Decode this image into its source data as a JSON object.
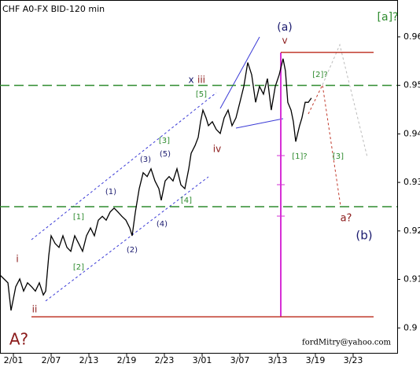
{
  "chart_data": {
    "type": "line",
    "title": "CHF A0-FX BID-120 min",
    "x": [
      -1.42,
      -1,
      -0.58,
      -0.25,
      0,
      0.25,
      0.67,
      1.08,
      1.5,
      1.92,
      2.33,
      2.75,
      3.17,
      3.42,
      3.75,
      4,
      4.42,
      4.83,
      5.25,
      5.67,
      6.08,
      6.5,
      6.92,
      7.33,
      7.75,
      8.17,
      8.58,
      9,
      9.42,
      9.83,
      10.25,
      10.67,
      11.08,
      11.5,
      11.92,
      12.33,
      12.58,
      12.92,
      13.33,
      13.75,
      14.17,
      14.58,
      15,
      15.42,
      15.67,
      16.08,
      16.5,
      16.92,
      17.33,
      17.75,
      18.17,
      18.58,
      18.83,
      19.25,
      19.58,
      19.83,
      20.08,
      20.42,
      20.67,
      21.08,
      21.5,
      21.92,
      22.33,
      22.75,
      23.17,
      23.58,
      24,
      24.42,
      24.83,
      25.25,
      25.67,
      26.08,
      26.5,
      26.92,
      27.33,
      27.75,
      28.17,
      28.58,
      28.83,
      29.08,
      29.42,
      29.67,
      29.92,
      30.33,
      30.58,
      30.92,
      31.25,
      31.58
    ],
    "series": [
      {
        "color": "#000000",
        "values": [
          0.9109,
          0.9101,
          0.9093,
          0.9036,
          0.906,
          0.9085,
          0.9101,
          0.9076,
          0.9093,
          0.9085,
          0.9076,
          0.9093,
          0.9068,
          0.9076,
          0.9149,
          0.919,
          0.9174,
          0.9166,
          0.919,
          0.9166,
          0.9158,
          0.919,
          0.9174,
          0.9158,
          0.919,
          0.9206,
          0.919,
          0.9222,
          0.923,
          0.9222,
          0.9239,
          0.9247,
          0.9239,
          0.923,
          0.9222,
          0.9206,
          0.919,
          0.9239,
          0.9287,
          0.932,
          0.9312,
          0.9328,
          0.9303,
          0.9287,
          0.9263,
          0.9303,
          0.9312,
          0.9303,
          0.9328,
          0.9295,
          0.9287,
          0.9328,
          0.936,
          0.9376,
          0.9393,
          0.9425,
          0.9449,
          0.9433,
          0.9417,
          0.9425,
          0.9409,
          0.9401,
          0.9433,
          0.9449,
          0.9417,
          0.9433,
          0.9465,
          0.9498,
          0.9547,
          0.9522,
          0.9465,
          0.9498,
          0.9482,
          0.9514,
          0.9449,
          0.9498,
          0.9522,
          0.9555,
          0.953,
          0.9465,
          0.9449,
          0.9425,
          0.9384,
          0.9417,
          0.9433,
          0.9465,
          0.9465,
          0.9474
        ]
      }
    ],
    "xlim": [
      -1.42,
      40.67
    ],
    "ylim": [
      0.8947,
      0.9676
    ],
    "xticks": [
      {
        "value": 0,
        "label": "2/01"
      },
      {
        "value": 4,
        "label": "2/07"
      },
      {
        "value": 8,
        "label": "2/13"
      },
      {
        "value": 12,
        "label": "2/19"
      },
      {
        "value": 16,
        "label": "2/23"
      },
      {
        "value": 20,
        "label": "3/01"
      },
      {
        "value": 24,
        "label": "3/07"
      },
      {
        "value": 28,
        "label": "3/13"
      },
      {
        "value": 32,
        "label": "3/19"
      },
      {
        "value": 36,
        "label": "3/23"
      }
    ],
    "yticks": [
      0.9,
      0.91,
      0.92,
      0.93,
      0.94,
      0.95,
      0.96
    ],
    "levels": [
      {
        "value": 0.95,
        "color": "#2e8b2e"
      },
      {
        "value": 0.925,
        "color": "#2e8b2e"
      },
      {
        "value": 0.9023,
        "color": "#c0392b"
      },
      {
        "value": 0.9568,
        "color": "#c0392b"
      }
    ],
    "annotations": [
      "[a]?",
      "(a)",
      "v",
      "[2]?",
      "x",
      "iii",
      "[5]",
      "iv",
      "[1]?",
      "[3]",
      "[3]",
      "(3)",
      "(5)",
      "(1)",
      "[1]",
      "[2]",
      "(2)",
      "(4)",
      "[4]",
      "i",
      "ii",
      "a?",
      "(b)",
      "A?"
    ],
    "credit": "fordMitry@yahoo.com"
  }
}
